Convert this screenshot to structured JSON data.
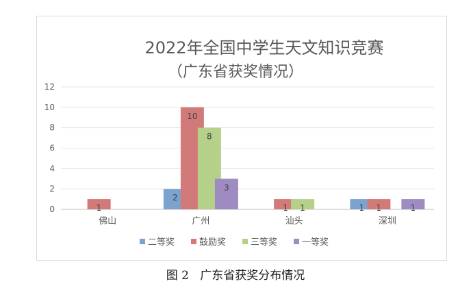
{
  "caption": {
    "figure_label": "图 2",
    "text": "广东省获奖分布情况"
  },
  "chart_data": {
    "type": "bar",
    "title": "2022年全国中学生天文知识竞赛",
    "subtitle": "（广东省获奖情况）",
    "xlabel": "",
    "ylabel": "",
    "categories": [
      "佛山",
      "广州",
      "汕头",
      "深圳"
    ],
    "ylim": [
      0,
      12
    ],
    "yticks": [
      0,
      2,
      4,
      6,
      8,
      10,
      12
    ],
    "grid": true,
    "legend_position": "bottom",
    "series": [
      {
        "name": "二等奖",
        "color": "#7ba3d0",
        "values": [
          0,
          2,
          0,
          1
        ]
      },
      {
        "name": "鼓励奖",
        "color": "#d27a79",
        "values": [
          1,
          10,
          1,
          1
        ]
      },
      {
        "name": "三等奖",
        "color": "#b5d189",
        "values": [
          0,
          8,
          1,
          0
        ]
      },
      {
        "name": "一等奖",
        "color": "#9e8bc2",
        "values": [
          0,
          3,
          0,
          1
        ]
      }
    ]
  }
}
